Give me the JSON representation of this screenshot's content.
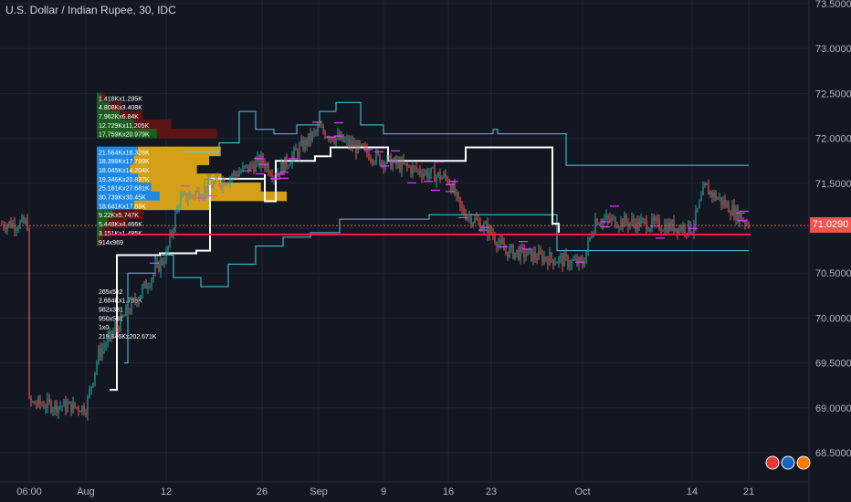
{
  "chart_title": "U.S. Dollar / Indian Rupee, 30, IDC",
  "current_price": "71.0290",
  "colors": {
    "background": "#131722",
    "grid": "#1f2433",
    "axis_text": "#b2b5be",
    "up_candle": "#26a69a",
    "down_candle": "#ef5350",
    "cyan_band": "#4dd0e1",
    "vwap_line": "#ffffff",
    "red_level": "#ff1744",
    "volume_blue": "#1e88e5",
    "volume_gold": "#d4a017",
    "volume_green": "#1b5e20",
    "volume_darkred": "#5d1414",
    "magenta_marks": "#e040fb"
  },
  "chart_data": {
    "type": "candlestick",
    "title": "U.S. Dollar / Indian Rupee, 30, IDC",
    "y_ticks": [
      "73.5000",
      "73.0000",
      "72.5000",
      "72.0000",
      "71.5000",
      "71.0000",
      "70.5000",
      "70.0000",
      "69.5000",
      "69.0000",
      "68.5000"
    ],
    "ylim": [
      68.5,
      73.5
    ],
    "x_ticks": [
      "06:00",
      "Aug",
      "12",
      "26",
      "Sep",
      "9",
      "16",
      "23",
      "Oct",
      "14",
      "21"
    ],
    "last_price": 71.029,
    "red_level": 70.93,
    "price_path": [
      [
        "06:00",
        69.05
      ],
      [
        "Aug",
        69.0
      ],
      [
        "Aug",
        69.6
      ],
      [
        "12",
        70.7
      ],
      [
        "12",
        71.3
      ],
      [
        "26",
        71.75
      ],
      [
        "26",
        71.6
      ],
      [
        "Sep",
        72.1
      ],
      [
        "9",
        71.75
      ],
      [
        "16",
        71.55
      ],
      [
        "16",
        71.2
      ],
      [
        "23",
        70.95
      ],
      [
        "23",
        70.75
      ],
      [
        "Oct",
        70.6
      ],
      [
        "Oct",
        71.1
      ],
      [
        "14",
        71.0
      ],
      [
        "14",
        71.45
      ],
      [
        "21",
        71.05
      ]
    ],
    "volume_profile": [
      {
        "label": "1.418Kx1.295K",
        "level": 72.45
      },
      {
        "label": "4.808Kx3.408K",
        "level": 72.35
      },
      {
        "label": "7.962Kx6.84K",
        "level": 72.25
      },
      {
        "label": "12.729Kx11.205K",
        "level": 72.15
      },
      {
        "label": "17.759Kx20.979K",
        "level": 72.05
      },
      {
        "label": "21.564Kx18.328K",
        "level": 71.85
      },
      {
        "label": "18.398Kx17.799K",
        "level": 71.75
      },
      {
        "label": "18.045Kx14.204K",
        "level": 71.65
      },
      {
        "label": "19.346Kx20.837K",
        "level": 71.55
      },
      {
        "label": "25.181Kx27.681K",
        "level": 71.45
      },
      {
        "label": "30.739Kx30.45K",
        "level": 71.35
      },
      {
        "label": "18.641Kx17.88K",
        "level": 71.25
      },
      {
        "label": "9.22Kx5.747K",
        "level": 71.15
      },
      {
        "label": "5.448Kx4.466K",
        "level": 71.05
      },
      {
        "label": "3.151Kx1.485K",
        "level": 70.95
      },
      {
        "label": "914x969",
        "level": 70.85
      },
      {
        "label": "265x5x2",
        "level": 70.3
      },
      {
        "label": "2.684Kx1.786K",
        "level": 70.2
      },
      {
        "label": "982x331",
        "level": 70.1
      },
      {
        "label": "950x531",
        "level": 70.0
      },
      {
        "label": "1x0",
        "level": 69.9
      },
      {
        "label": "219.846Kx202.671K",
        "level": 69.8
      }
    ]
  }
}
